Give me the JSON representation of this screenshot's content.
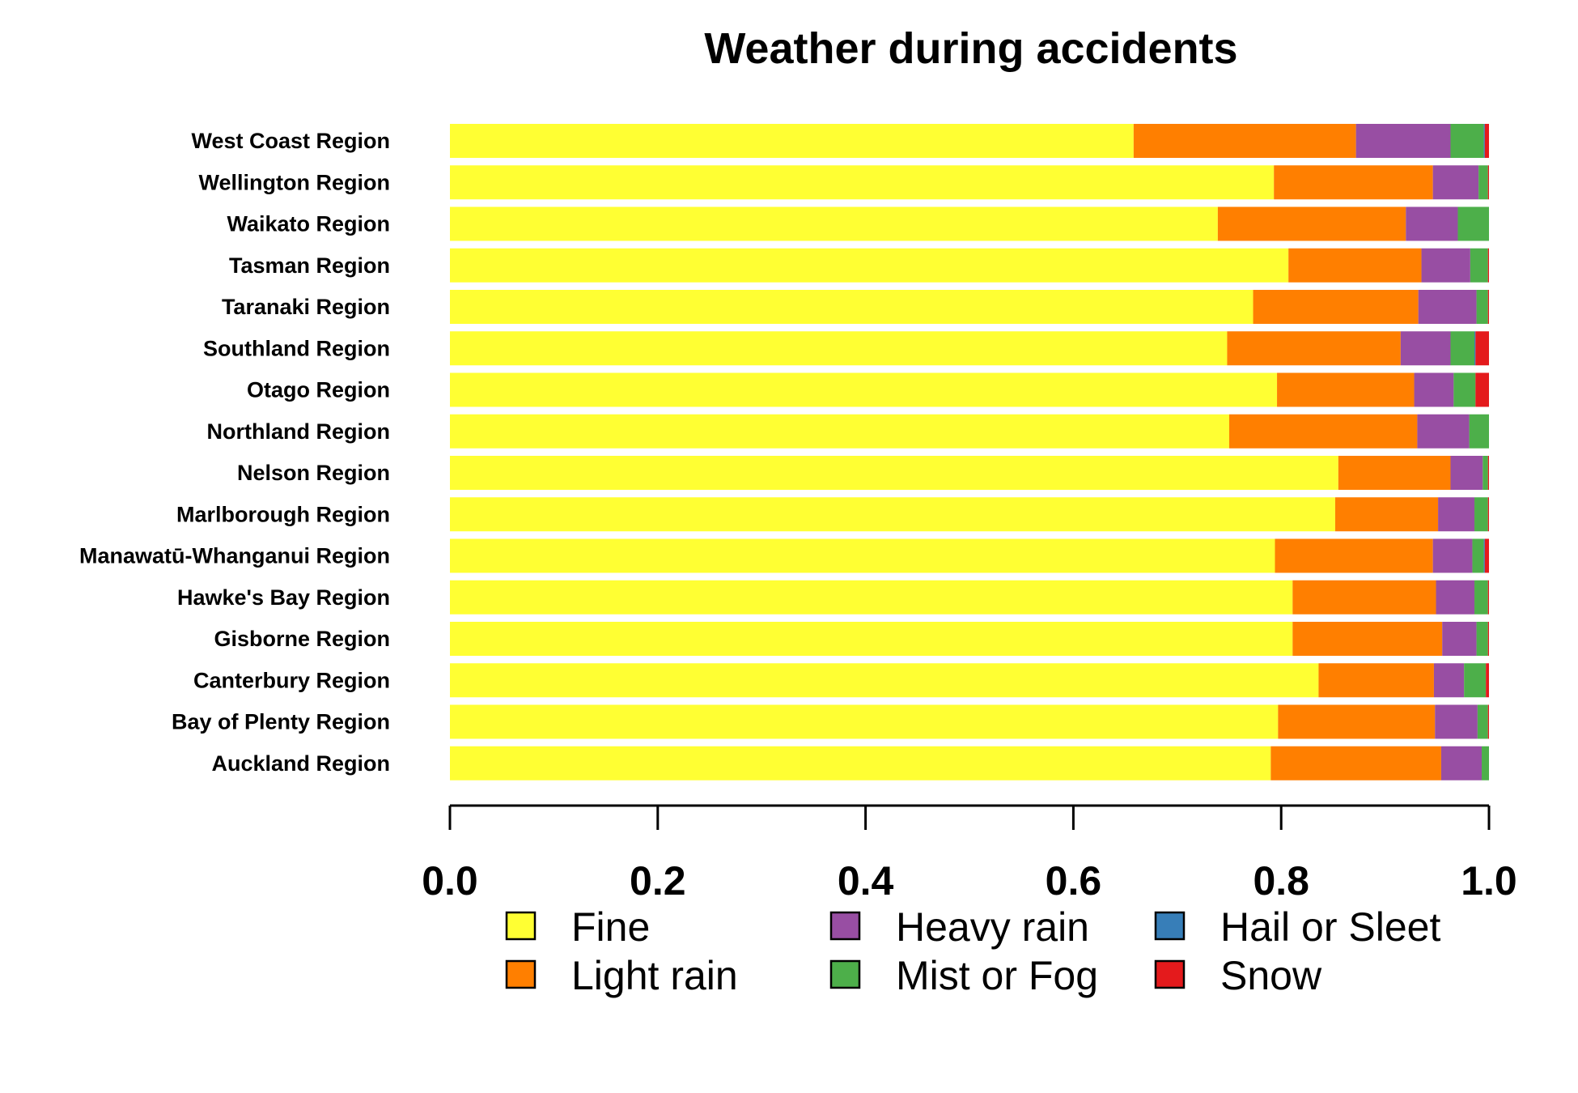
{
  "chart_data": {
    "type": "bar",
    "orientation": "horizontal",
    "stacked": true,
    "title": "Weather during accidents",
    "xlabel": "",
    "ylabel": "",
    "xlim": [
      0,
      1
    ],
    "xticks": [
      "0.0",
      "0.2",
      "0.4",
      "0.6",
      "0.8",
      "1.0"
    ],
    "grid": false,
    "legend_position": "bottom",
    "categories": [
      "West Coast Region",
      "Wellington Region",
      "Waikato Region",
      "Tasman Region",
      "Taranaki Region",
      "Southland Region",
      "Otago Region",
      "Northland Region",
      "Nelson Region",
      "Marlborough Region",
      "Manawatū-Whanganui Region",
      "Hawke's Bay Region",
      "Gisborne Region",
      "Canterbury Region",
      "Bay of Plenty Region",
      "Auckland Region"
    ],
    "series": [
      {
        "name": "Fine",
        "color": "#FFFF33",
        "values": [
          0.658,
          0.793,
          0.739,
          0.807,
          0.773,
          0.748,
          0.796,
          0.75,
          0.855,
          0.852,
          0.794,
          0.811,
          0.811,
          0.836,
          0.797,
          0.79
        ]
      },
      {
        "name": "Light rain",
        "color": "#FF7F00",
        "values": [
          0.214,
          0.153,
          0.181,
          0.128,
          0.159,
          0.167,
          0.132,
          0.181,
          0.108,
          0.099,
          0.152,
          0.138,
          0.144,
          0.111,
          0.151,
          0.164
        ]
      },
      {
        "name": "Heavy rain",
        "color": "#984EA3",
        "values": [
          0.091,
          0.044,
          0.05,
          0.047,
          0.056,
          0.048,
          0.038,
          0.05,
          0.031,
          0.035,
          0.038,
          0.037,
          0.033,
          0.029,
          0.041,
          0.039
        ]
      },
      {
        "name": "Mist or Fog",
        "color": "#4DAF4A",
        "values": [
          0.032,
          0.009,
          0.03,
          0.017,
          0.011,
          0.023,
          0.021,
          0.019,
          0.005,
          0.013,
          0.011,
          0.013,
          0.011,
          0.021,
          0.01,
          0.007
        ]
      },
      {
        "name": "Hail or Sleet",
        "color": "#377EB8",
        "values": [
          0.001,
          0.0,
          0.0,
          0.0,
          0.0,
          0.001,
          0.0,
          0.0,
          0.0,
          0.0,
          0.001,
          0.0,
          0.0,
          0.0,
          0.0,
          0.0
        ]
      },
      {
        "name": "Snow",
        "color": "#E41A1C",
        "values": [
          0.004,
          0.001,
          0.0,
          0.001,
          0.001,
          0.013,
          0.013,
          0.0,
          0.001,
          0.001,
          0.004,
          0.001,
          0.001,
          0.003,
          0.001,
          0.0
        ]
      }
    ]
  }
}
